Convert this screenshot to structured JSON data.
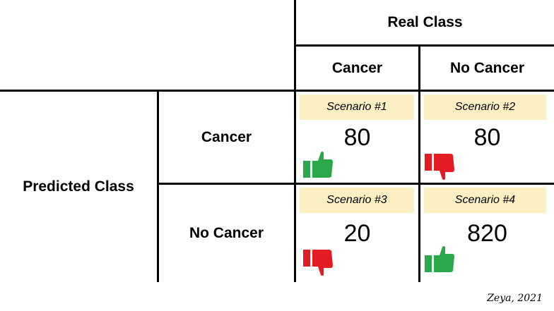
{
  "header": {
    "real_class": "Real Class",
    "predicted_class": "Predicted Class"
  },
  "columns": [
    "Cancer",
    "No Cancer"
  ],
  "rows": [
    "Cancer",
    "No Cancer"
  ],
  "cells": [
    {
      "scenario": "Scenario #1",
      "value": "80",
      "verdict": "thumbs-up"
    },
    {
      "scenario": "Scenario #2",
      "value": "80",
      "verdict": "thumbs-down"
    },
    {
      "scenario": "Scenario #3",
      "value": "20",
      "verdict": "thumbs-down"
    },
    {
      "scenario": "Scenario #4",
      "value": "820",
      "verdict": "thumbs-up"
    }
  ],
  "credit": "Zeya, 2021",
  "colors": {
    "scenario_bg": "#fcefc4",
    "thumbs_up": "#2aa84a",
    "thumbs_down": "#e31b23"
  }
}
